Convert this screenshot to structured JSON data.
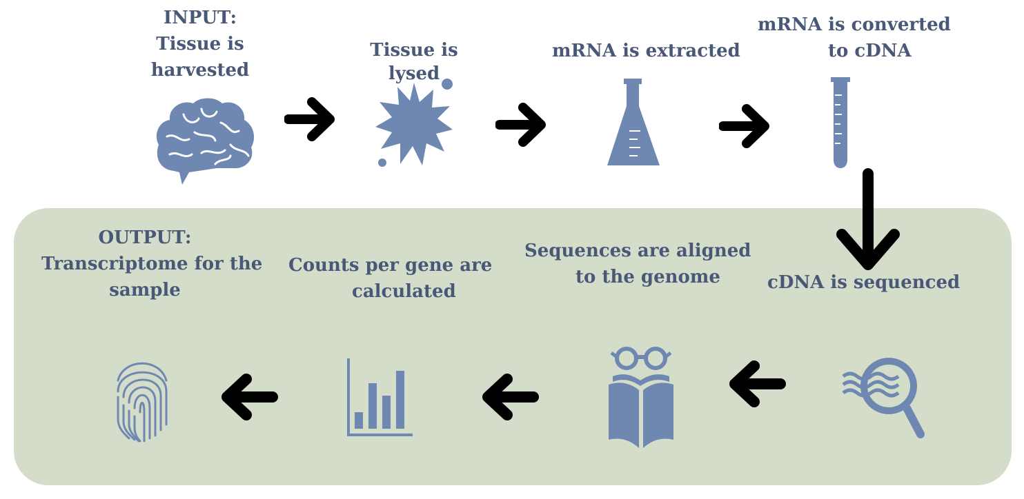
{
  "colors": {
    "icon": "#6f88b1",
    "text": "#4a5878",
    "arrow": "#000000",
    "panel": "#d3ddca"
  },
  "steps": [
    {
      "line1": "INPUT:",
      "line2": "Tissue is",
      "line3": "harvested",
      "icon": "brain-icon"
    },
    {
      "line1": "Tissue is",
      "line2": "lysed",
      "icon": "splat-icon"
    },
    {
      "line1": "mRNA is extracted",
      "icon": "flask-icon"
    },
    {
      "line1": "mRNA is converted",
      "line2": "to cDNA",
      "icon": "test-tube-icon"
    },
    {
      "line1": "cDNA is sequenced",
      "icon": "magnifier-icon"
    },
    {
      "line1": "Sequences are aligned",
      "line2": "to the genome",
      "icon": "book-reader-icon"
    },
    {
      "line1": "Counts per gene are",
      "line2": "calculated",
      "icon": "bar-chart-icon"
    },
    {
      "line1": "OUTPUT:",
      "line2": "Transcriptome for the",
      "line3": "sample",
      "icon": "fingerprint-icon"
    }
  ]
}
